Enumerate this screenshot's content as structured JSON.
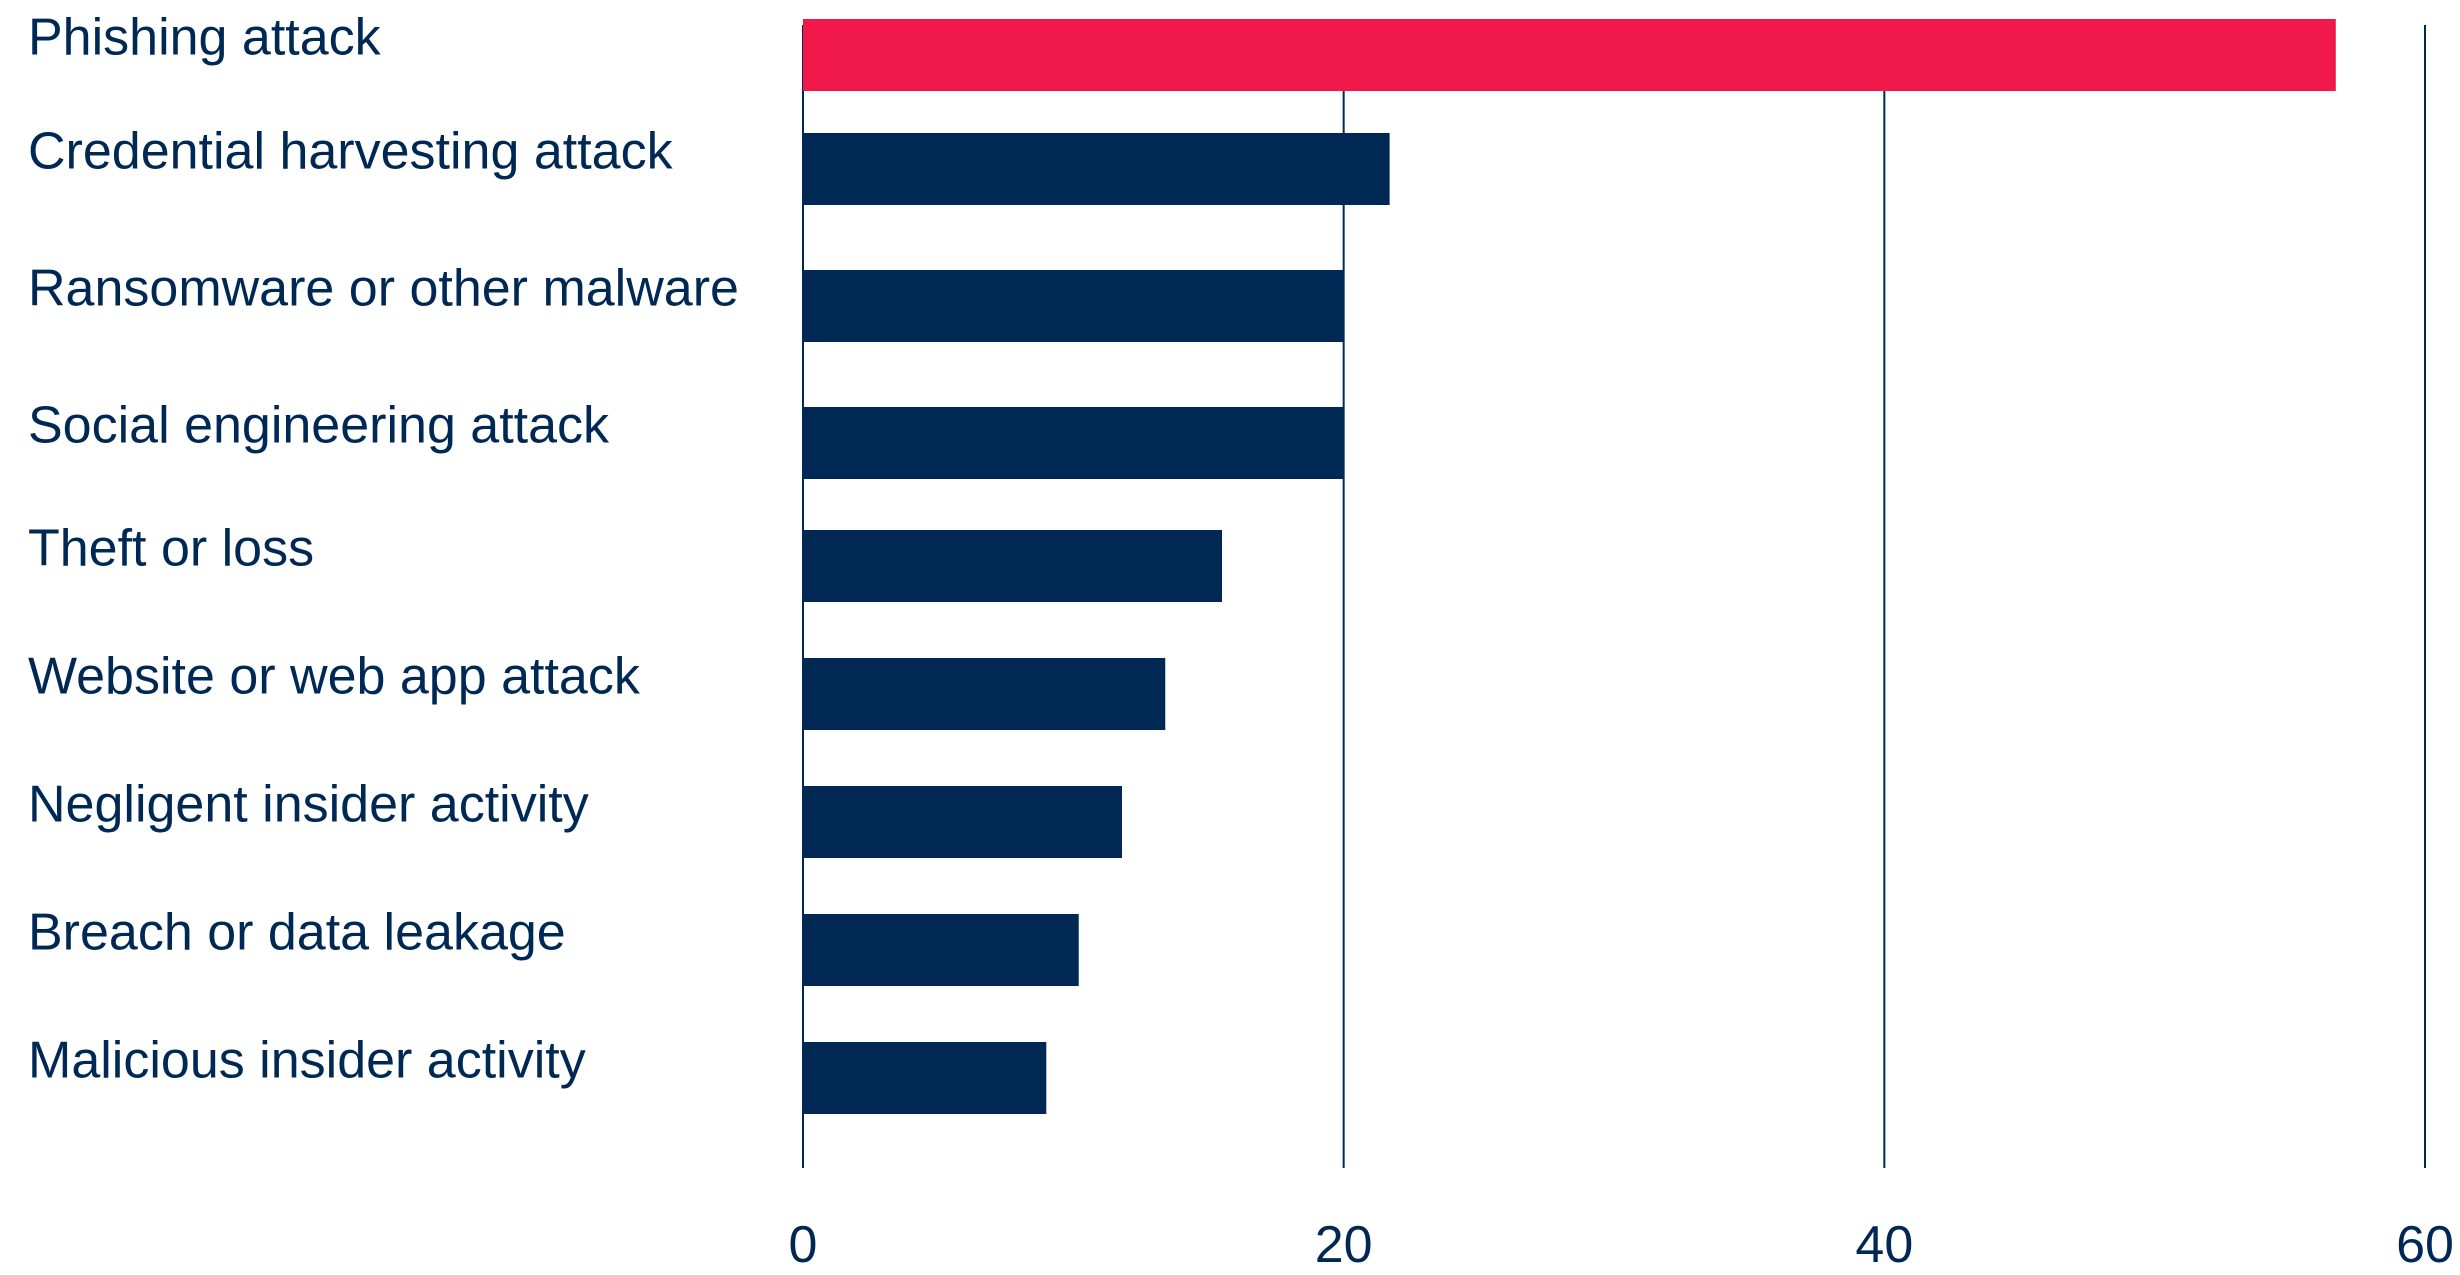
{
  "chart_data": {
    "type": "bar",
    "orientation": "horizontal",
    "title": "",
    "xlabel": "",
    "ylabel": "",
    "categories": [
      "Phishing attack",
      "Credential harvesting attack",
      "Ransomware or other malware",
      "Social engineering attack",
      "Theft or loss",
      "Website or web app attack",
      "Negligent insider activity",
      "Breach or data leakage",
      "Malicious insider activity"
    ],
    "values": [
      56.7,
      21.7,
      20,
      20,
      15.5,
      13.4,
      11.8,
      10.2,
      9
    ],
    "xlim": [
      0,
      60
    ],
    "xticks": [
      0,
      20,
      40,
      60
    ],
    "grid": "vertical",
    "legend": "none",
    "colors": {
      "highlight": "#F0194A",
      "bar": "#002855",
      "text": "#002855",
      "grid": "#002855"
    },
    "highlight_index": 0
  }
}
